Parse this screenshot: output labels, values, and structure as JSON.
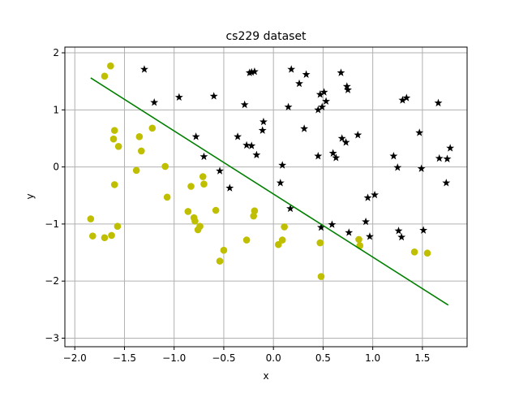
{
  "chart_data": {
    "type": "scatter",
    "title": "cs229 dataset",
    "xlabel": "x",
    "ylabel": "y",
    "xlim": [
      -2.1,
      1.95
    ],
    "ylim": [
      -3.15,
      2.1
    ],
    "xticks": [
      -2.0,
      -1.5,
      -1.0,
      -0.5,
      0.0,
      0.5,
      1.0,
      1.5
    ],
    "xtick_labels": [
      "−2.0",
      "−1.5",
      "−1.0",
      "−0.5",
      "0.0",
      "0.5",
      "1.0",
      "1.5"
    ],
    "yticks": [
      -3,
      -2,
      -1,
      0,
      1,
      2
    ],
    "ytick_labels": [
      "−3",
      "−2",
      "−1",
      "0",
      "1",
      "2"
    ],
    "grid": true,
    "colors": {
      "class0": "#bfbf00",
      "class1": "#000000",
      "line": "#008000",
      "grid": "#b0b0b0"
    },
    "series": [
      {
        "marker": "circle",
        "color": "#bfbf00",
        "points": [
          [
            -1.64,
            1.77
          ],
          [
            -1.7,
            1.59
          ],
          [
            -1.6,
            0.64
          ],
          [
            -1.61,
            0.49
          ],
          [
            -1.56,
            0.36
          ],
          [
            -1.22,
            0.68
          ],
          [
            -1.35,
            0.53
          ],
          [
            -1.33,
            0.28
          ],
          [
            -1.38,
            -0.06
          ],
          [
            -1.09,
            0.01
          ],
          [
            -1.6,
            -0.31
          ],
          [
            -1.07,
            -0.53
          ],
          [
            -0.71,
            -0.17
          ],
          [
            -0.7,
            -0.3
          ],
          [
            -0.83,
            -0.34
          ],
          [
            -1.84,
            -0.91
          ],
          [
            -1.82,
            -1.21
          ],
          [
            -1.7,
            -1.24
          ],
          [
            -1.63,
            -1.2
          ],
          [
            -1.57,
            -1.04
          ],
          [
            -0.86,
            -0.78
          ],
          [
            -0.8,
            -0.89
          ],
          [
            -0.79,
            -0.95
          ],
          [
            -0.74,
            -1.04
          ],
          [
            -0.76,
            -1.1
          ],
          [
            -0.58,
            -0.76
          ],
          [
            -0.54,
            -1.65
          ],
          [
            -0.5,
            -1.46
          ],
          [
            -0.19,
            -0.77
          ],
          [
            -0.2,
            -0.86
          ],
          [
            -0.27,
            -1.28
          ],
          [
            0.05,
            -1.36
          ],
          [
            0.09,
            -1.28
          ],
          [
            0.11,
            -1.05
          ],
          [
            0.47,
            -1.33
          ],
          [
            0.48,
            -1.92
          ],
          [
            0.86,
            -1.27
          ],
          [
            0.87,
            -1.38
          ],
          [
            1.42,
            -1.49
          ],
          [
            1.55,
            -1.51
          ]
        ]
      },
      {
        "marker": "star",
        "color": "#000000",
        "points": [
          [
            -1.3,
            1.71
          ],
          [
            -1.2,
            1.13
          ],
          [
            -0.95,
            1.22
          ],
          [
            -0.6,
            1.24
          ],
          [
            -0.29,
            1.09
          ],
          [
            -0.24,
            1.65
          ],
          [
            -0.22,
            1.66
          ],
          [
            -0.19,
            1.67
          ],
          [
            0.18,
            1.71
          ],
          [
            0.33,
            1.62
          ],
          [
            0.26,
            1.46
          ],
          [
            0.15,
            1.05
          ],
          [
            -0.1,
            0.79
          ],
          [
            -0.11,
            0.64
          ],
          [
            -0.36,
            0.53
          ],
          [
            -0.78,
            0.53
          ],
          [
            -0.7,
            0.18
          ],
          [
            -0.27,
            0.38
          ],
          [
            -0.22,
            0.37
          ],
          [
            -0.17,
            0.21
          ],
          [
            0.31,
            0.67
          ],
          [
            0.45,
            1.0
          ],
          [
            0.47,
            1.27
          ],
          [
            0.51,
            1.31
          ],
          [
            0.53,
            1.15
          ],
          [
            0.49,
            1.05
          ],
          [
            0.68,
            1.65
          ],
          [
            0.74,
            1.41
          ],
          [
            0.75,
            1.35
          ],
          [
            0.69,
            0.5
          ],
          [
            0.73,
            0.43
          ],
          [
            0.6,
            0.24
          ],
          [
            0.63,
            0.16
          ],
          [
            0.45,
            0.19
          ],
          [
            0.85,
            0.56
          ],
          [
            1.3,
            1.17
          ],
          [
            1.34,
            1.21
          ],
          [
            1.66,
            1.12
          ],
          [
            1.47,
            0.6
          ],
          [
            1.21,
            0.19
          ],
          [
            1.25,
            -0.01
          ],
          [
            1.49,
            -0.03
          ],
          [
            1.67,
            0.15
          ],
          [
            1.75,
            0.14
          ],
          [
            1.78,
            0.33
          ],
          [
            1.74,
            -0.28
          ],
          [
            0.95,
            -0.54
          ],
          [
            1.02,
            -0.49
          ],
          [
            0.93,
            -0.96
          ],
          [
            0.97,
            -1.22
          ],
          [
            0.76,
            -1.15
          ],
          [
            0.59,
            -1.01
          ],
          [
            0.48,
            -1.06
          ],
          [
            1.26,
            -1.12
          ],
          [
            1.29,
            -1.23
          ],
          [
            1.51,
            -1.11
          ],
          [
            0.09,
            0.03
          ],
          [
            0.07,
            -0.28
          ],
          [
            0.17,
            -0.73
          ],
          [
            -0.54,
            -0.07
          ],
          [
            -0.44,
            -0.37
          ]
        ]
      }
    ],
    "line": {
      "x": [
        -1.84,
        1.76
      ],
      "y": [
        1.56,
        -2.42
      ],
      "color": "#008000"
    }
  }
}
